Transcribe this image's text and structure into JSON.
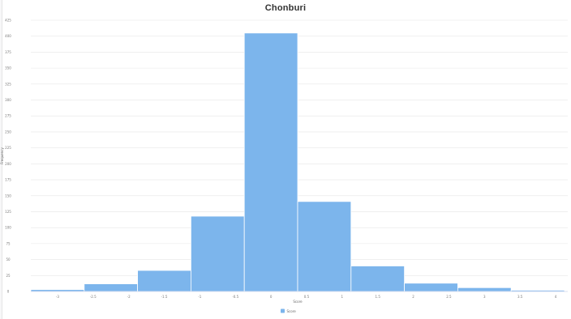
{
  "chart_data": {
    "type": "bar",
    "title": "Chonburi",
    "xlabel": "Score",
    "ylabel": "Frequency",
    "bin_edges": [
      -3.375,
      -2.625,
      -1.875,
      -1.125,
      -0.375,
      0.375,
      1.125,
      1.875,
      2.625,
      3.375,
      4.125
    ],
    "series": [
      {
        "name": "Score",
        "values": [
          3,
          12,
          33,
          118,
          405,
          141,
          40,
          13,
          6,
          2
        ]
      }
    ],
    "x_ticks": [
      "-3",
      "-2.5",
      "-2",
      "-1.5",
      "-1",
      "-0.5",
      "0",
      "0.5",
      "1",
      "1.5",
      "2",
      "2.5",
      "3",
      "3.5",
      "4"
    ],
    "x_tick_values": [
      -3,
      -2.5,
      -2,
      -1.5,
      -1,
      -0.5,
      0,
      0.5,
      1,
      1.5,
      2,
      2.5,
      3,
      3.5,
      4
    ],
    "y_ticks": [
      "0",
      "25",
      "50",
      "75",
      "100",
      "125",
      "150",
      "175",
      "200",
      "225",
      "250",
      "275",
      "300",
      "325",
      "350",
      "375",
      "400",
      "425"
    ],
    "y_tick_values": [
      0,
      25,
      50,
      75,
      100,
      125,
      150,
      175,
      200,
      225,
      250,
      275,
      300,
      325,
      350,
      375,
      400,
      425
    ],
    "ylim": [
      0,
      425
    ],
    "xlim": [
      -3.375,
      4.125
    ],
    "grid": true,
    "legend_position": "bottom-center",
    "colors": {
      "bar": "#7cb5ec",
      "grid": "#e6e6e6",
      "axis": "#ccd6eb"
    }
  }
}
